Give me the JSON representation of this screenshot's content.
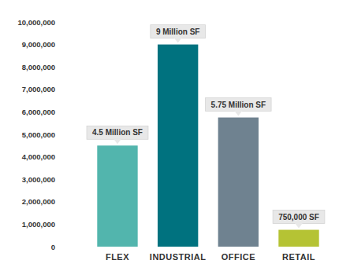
{
  "chart_data": {
    "type": "bar",
    "categories": [
      "FLEX",
      "INDUSTRIAL",
      "OFFICE",
      "RETAIL"
    ],
    "values": [
      4500000,
      9000000,
      5750000,
      750000
    ],
    "value_labels": [
      "4.5 Million SF",
      "9 Million SF",
      "5.75 Million SF",
      "750,000 SF"
    ],
    "colors": [
      "#52b5ad",
      "#00727f",
      "#6f8290",
      "#b5c334"
    ],
    "data_labels": true,
    "grid": false,
    "ylim": [
      0,
      10000000
    ],
    "yticks": [
      0,
      {
        "value": 1000000,
        "label": "1,000,000"
      },
      {
        "value": 2000000,
        "label": "2,000,000"
      },
      {
        "value": 3000000,
        "label": "3,000,000"
      },
      {
        "value": 4000000,
        "label": "4,000,000"
      },
      {
        "value": 5000000,
        "label": "5,000,000"
      },
      {
        "value": 6000000,
        "label": "6,000,000"
      },
      {
        "value": 7000000,
        "label": "7,000,000"
      },
      {
        "value": 8000000,
        "label": "8,000,000"
      },
      {
        "value": 9000000,
        "label": "9,000,000"
      },
      {
        "value": 10000000,
        "label": "10,000,000"
      }
    ]
  }
}
